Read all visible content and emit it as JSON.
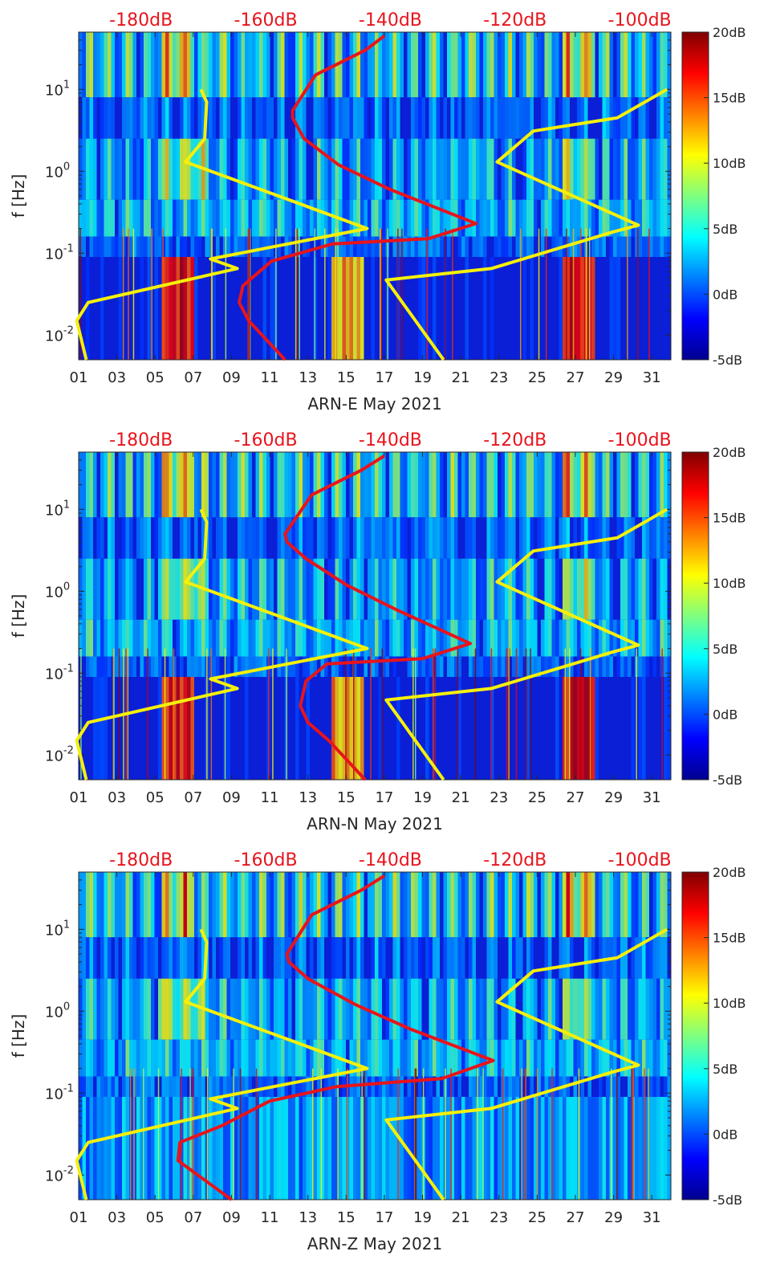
{
  "chart_data": {
    "type": "heatmap",
    "colorbar": {
      "colormap": "jet",
      "range": [
        -5,
        20
      ],
      "unit": "dB",
      "ticks": [
        "20dB",
        "15dB",
        "10dB",
        "5dB",
        "0dB",
        "-5dB"
      ],
      "tick_values": [
        20,
        15,
        10,
        5,
        0,
        -5
      ]
    },
    "x_days": [
      "01",
      "03",
      "05",
      "07",
      "09",
      "11",
      "13",
      "15",
      "17",
      "19",
      "21",
      "23",
      "25",
      "27",
      "29",
      "31"
    ],
    "x_range": [
      1,
      32
    ],
    "top_axis_ticks": [
      "-180dB",
      "-160dB",
      "-140dB",
      "-120dB",
      "-100dB"
    ],
    "top_axis_range_db": [
      -190,
      -95
    ],
    "y_ticks": [
      {
        "exp": "-2",
        "value": 0.01
      },
      {
        "exp": "-1",
        "value": 0.1
      },
      {
        "exp": "0",
        "value": 1
      },
      {
        "exp": "1",
        "value": 10
      }
    ],
    "y_range_hz": [
      0.005,
      50
    ],
    "ylabel": "f [Hz]",
    "panels": [
      {
        "id": "E",
        "xlabel": "ARN-E May 2021",
        "yellow_left": [
          [
            7.4,
            10
          ],
          [
            7.7,
            7
          ],
          [
            7.6,
            2.5
          ],
          [
            6.6,
            1.3
          ],
          [
            16.1,
            0.2
          ],
          [
            7.9,
            0.085
          ],
          [
            9.3,
            0.065
          ],
          [
            1.5,
            0.025
          ],
          [
            0.9,
            0.015
          ],
          [
            1.4,
            0.005
          ]
        ],
        "yellow_right": [
          [
            31.8,
            10
          ],
          [
            29.2,
            4.5
          ],
          [
            24.8,
            3.1
          ],
          [
            22.9,
            1.3
          ],
          [
            30.3,
            0.22
          ],
          [
            28.9,
            0.18
          ],
          [
            22.6,
            0.065
          ],
          [
            17.1,
            0.047
          ],
          [
            20.1,
            0.005
          ]
        ],
        "red_ppsd": [
          [
            17.0,
            45
          ],
          [
            16.0,
            30
          ],
          [
            13.4,
            15
          ],
          [
            12.2,
            5.5
          ],
          [
            12.2,
            4.5
          ],
          [
            12.8,
            2.5
          ],
          [
            14.6,
            1.2
          ],
          [
            17.3,
            0.6
          ],
          [
            21.8,
            0.23
          ],
          [
            19.3,
            0.15
          ],
          [
            14.3,
            0.13
          ],
          [
            11.1,
            0.08
          ],
          [
            9.6,
            0.04
          ],
          [
            9.4,
            0.025
          ],
          [
            9.9,
            0.015
          ],
          [
            11.8,
            0.005
          ]
        ]
      },
      {
        "id": "N",
        "xlabel": "ARN-N May 2021",
        "yellow_left": [
          [
            7.4,
            10
          ],
          [
            7.7,
            7
          ],
          [
            7.6,
            2.5
          ],
          [
            6.6,
            1.3
          ],
          [
            16.1,
            0.2
          ],
          [
            7.9,
            0.085
          ],
          [
            9.3,
            0.065
          ],
          [
            1.5,
            0.025
          ],
          [
            0.9,
            0.015
          ],
          [
            1.4,
            0.005
          ]
        ],
        "yellow_right": [
          [
            31.8,
            10
          ],
          [
            29.2,
            4.5
          ],
          [
            24.8,
            3.1
          ],
          [
            22.9,
            1.3
          ],
          [
            30.3,
            0.22
          ],
          [
            28.9,
            0.18
          ],
          [
            22.6,
            0.065
          ],
          [
            17.1,
            0.047
          ],
          [
            20.1,
            0.005
          ]
        ],
        "red_ppsd": [
          [
            17.0,
            45
          ],
          [
            15.8,
            30
          ],
          [
            13.2,
            15
          ],
          [
            11.8,
            5.0
          ],
          [
            11.9,
            4.0
          ],
          [
            12.9,
            2.5
          ],
          [
            15.0,
            1.2
          ],
          [
            17.6,
            0.6
          ],
          [
            21.5,
            0.23
          ],
          [
            19.0,
            0.15
          ],
          [
            14.0,
            0.13
          ],
          [
            12.9,
            0.08
          ],
          [
            12.6,
            0.04
          ],
          [
            13.0,
            0.025
          ],
          [
            14.1,
            0.015
          ],
          [
            16.0,
            0.005
          ]
        ]
      },
      {
        "id": "Z",
        "xlabel": "ARN-Z May 2021",
        "yellow_left": [
          [
            7.4,
            10
          ],
          [
            7.7,
            7
          ],
          [
            7.6,
            2.5
          ],
          [
            6.6,
            1.3
          ],
          [
            16.1,
            0.2
          ],
          [
            7.9,
            0.085
          ],
          [
            9.3,
            0.065
          ],
          [
            1.5,
            0.025
          ],
          [
            0.9,
            0.015
          ],
          [
            1.4,
            0.005
          ]
        ],
        "yellow_right": [
          [
            31.8,
            10
          ],
          [
            29.2,
            4.5
          ],
          [
            24.8,
            3.1
          ],
          [
            22.9,
            1.3
          ],
          [
            30.3,
            0.22
          ],
          [
            28.9,
            0.18
          ],
          [
            22.6,
            0.065
          ],
          [
            17.1,
            0.047
          ],
          [
            20.1,
            0.005
          ]
        ],
        "red_ppsd": [
          [
            17.0,
            45
          ],
          [
            15.8,
            30
          ],
          [
            13.2,
            15
          ],
          [
            11.9,
            5.0
          ],
          [
            12.0,
            4.0
          ],
          [
            13.0,
            2.5
          ],
          [
            15.5,
            1.2
          ],
          [
            18.4,
            0.6
          ],
          [
            22.7,
            0.25
          ],
          [
            20.0,
            0.15
          ],
          [
            14.5,
            0.12
          ],
          [
            11.0,
            0.08
          ],
          [
            8.5,
            0.04
          ],
          [
            6.3,
            0.025
          ],
          [
            6.2,
            0.015
          ],
          [
            9.0,
            0.005
          ]
        ]
      }
    ]
  }
}
